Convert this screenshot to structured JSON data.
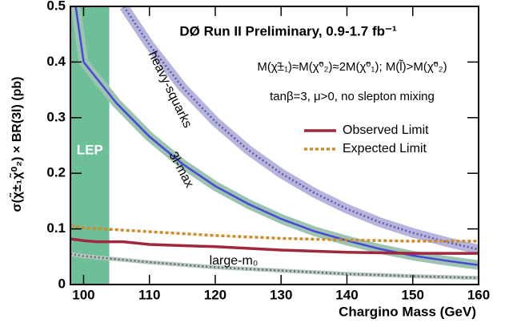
{
  "chart_data": {
    "type": "line",
    "title": "DØ Run II Preliminary, 0.9-1.7 fb⁻¹",
    "annotations": [
      "M(χ̃±₁)≈M(χ̃⁰₂)≈2M(χ̃⁰₁); M(l̃)>M(χ̃⁰₂)",
      "tanβ=3, μ>0, no slepton mixing"
    ],
    "x_label": "Chargino Mass (GeV)",
    "y_label": "σ(χ̃±₁χ̃⁰₂) × BR(3l) (pb)",
    "xlim": [
      98,
      160
    ],
    "xticks": [
      100,
      110,
      120,
      130,
      140,
      150,
      160
    ],
    "ylim": [
      0,
      0.5
    ],
    "yticks": [
      0,
      0.1,
      0.2,
      0.3,
      0.4,
      0.5
    ],
    "shaded_region": {
      "label": "LEP",
      "x": [
        98,
        103.9
      ],
      "color": "#6dbf98"
    },
    "series": [
      {
        "name": "heavy-squarks",
        "color": "#5a5aa8",
        "band_color": "#b4b4dc",
        "style": "dotted",
        "x": [
          106.1,
          110,
          115,
          120,
          125,
          130,
          135,
          140,
          145,
          150,
          155,
          160
        ],
        "values": [
          0.5,
          0.431,
          0.355,
          0.293,
          0.242,
          0.2,
          0.165,
          0.136,
          0.112,
          0.093,
          0.077,
          0.063
        ]
      },
      {
        "name": "3l-max",
        "color": "#4848d8",
        "band_color": "#9cc4b0",
        "style": "solid",
        "x": [
          98.8,
          100,
          105,
          110,
          115,
          120,
          125,
          130,
          135,
          140,
          145,
          150,
          155,
          160
        ],
        "values": [
          0.5,
          0.4,
          0.326,
          0.266,
          0.217,
          0.177,
          0.145,
          0.118,
          0.096,
          0.079,
          0.064,
          0.052,
          0.043,
          0.035
        ]
      },
      {
        "name": "large-m₀",
        "color": "#607070",
        "band_color": "#b8c8c0",
        "style": "dotted",
        "x": [
          98,
          100,
          110,
          120,
          130,
          140,
          150,
          160
        ],
        "values": [
          0.055,
          0.051,
          0.04,
          0.031,
          0.025,
          0.019,
          0.015,
          0.012
        ]
      },
      {
        "name": "Observed Limit",
        "color": "#a0283c",
        "style": "solid",
        "legend": true,
        "x": [
          98,
          100,
          102,
          106,
          110,
          120,
          130,
          140,
          150,
          160
        ],
        "values": [
          0.082,
          0.079,
          0.077,
          0.077,
          0.072,
          0.068,
          0.062,
          0.058,
          0.056,
          0.056
        ]
      },
      {
        "name": "Expected Limit",
        "color": "#d08a28",
        "style": "dashed",
        "legend": true,
        "x": [
          98,
          100,
          110,
          120,
          130,
          140,
          150,
          160
        ],
        "values": [
          0.106,
          0.102,
          0.095,
          0.088,
          0.083,
          0.08,
          0.078,
          0.078
        ]
      }
    ]
  }
}
